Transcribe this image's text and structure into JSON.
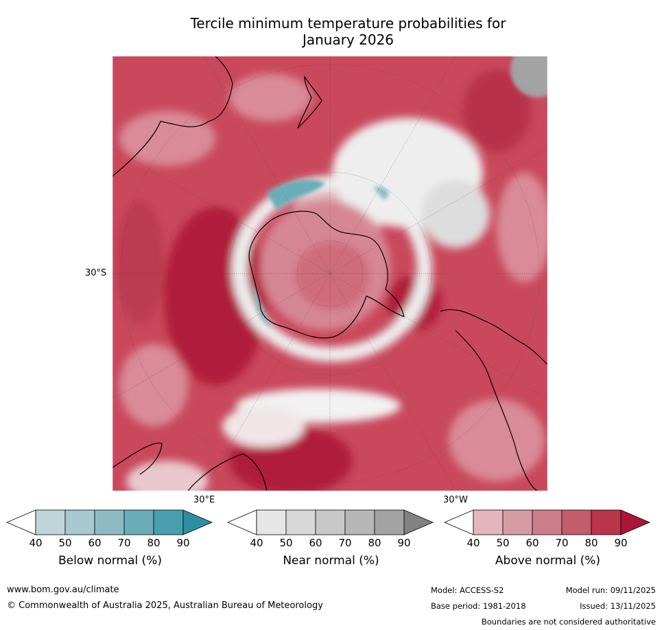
{
  "title_line1": "Tercile minimum temperature probabilities for",
  "title_line2": "January 2026",
  "map": {
    "projection": "south-polar-stereographic",
    "lat_label": "30°S",
    "lon_label_left": "30°E",
    "lon_label_right": "30°W"
  },
  "colorbars": [
    {
      "id": "below",
      "label": "Below normal (%)",
      "ticks": [
        "40",
        "50",
        "60",
        "70",
        "80",
        "90"
      ],
      "colors": [
        "#ffffff",
        "#bfd5da",
        "#a8c8cf",
        "#8ebbc3",
        "#6badb8",
        "#48a0ae",
        "#2e8ea0"
      ]
    },
    {
      "id": "near",
      "label": "Near normal (%)",
      "ticks": [
        "40",
        "50",
        "60",
        "70",
        "80",
        "90"
      ],
      "colors": [
        "#ffffff",
        "#e6e6e6",
        "#d8d8d8",
        "#c8c8c8",
        "#b7b7b7",
        "#a3a3a3",
        "#828282"
      ]
    },
    {
      "id": "above",
      "label": "Above normal (%)",
      "ticks": [
        "40",
        "50",
        "60",
        "70",
        "80",
        "90"
      ],
      "colors": [
        "#ffffff",
        "#e2b6bc",
        "#d69ba3",
        "#cb7e89",
        "#c35c6b",
        "#b93549",
        "#ac1535"
      ]
    }
  ],
  "footer": {
    "website": "www.bom.gov.au/climate",
    "copyright": "© Commonwealth of Australia 2025, Australian Bureau of Meteorology",
    "model": "Model: ACCESS-S2",
    "model_run": "Model run: 09/11/2025",
    "base_period": "Base period: 1981-2018",
    "issued": "Issued: 13/11/2025",
    "disclaimer": "Boundaries are not considered authoritative"
  }
}
